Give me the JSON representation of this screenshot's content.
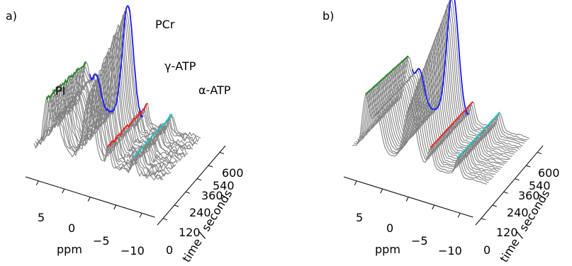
{
  "chart_data": [
    {
      "panel": "a)",
      "type": "line",
      "xlabel": "ppm",
      "ylabel": "time / seconds",
      "x_ticks": [
        "5",
        "0",
        "−5",
        "−10"
      ],
      "y_ticks": [
        "0",
        "120",
        "240",
        "360",
        "540",
        "600"
      ],
      "annotations": [
        "PCr",
        "γ-ATP",
        "α-ATP",
        "PI"
      ],
      "series": [
        {
          "color": "#1a1aff"
        },
        {
          "color": "#1b8a1b"
        },
        {
          "color": "#ff1a1a"
        },
        {
          "color": "#14c8c8"
        }
      ]
    },
    {
      "panel": "b)",
      "type": "line",
      "xlabel": "ppm",
      "ylabel": "time / seconds",
      "x_ticks": [
        "5",
        "0",
        "−5",
        "−10"
      ],
      "y_ticks": [
        "0",
        "120",
        "240",
        "360",
        "540",
        "600"
      ],
      "series": [
        {
          "color": "#1a1aff"
        },
        {
          "color": "#1b8a1b"
        },
        {
          "color": "#ff1a1a"
        },
        {
          "color": "#14c8c8"
        }
      ]
    }
  ]
}
